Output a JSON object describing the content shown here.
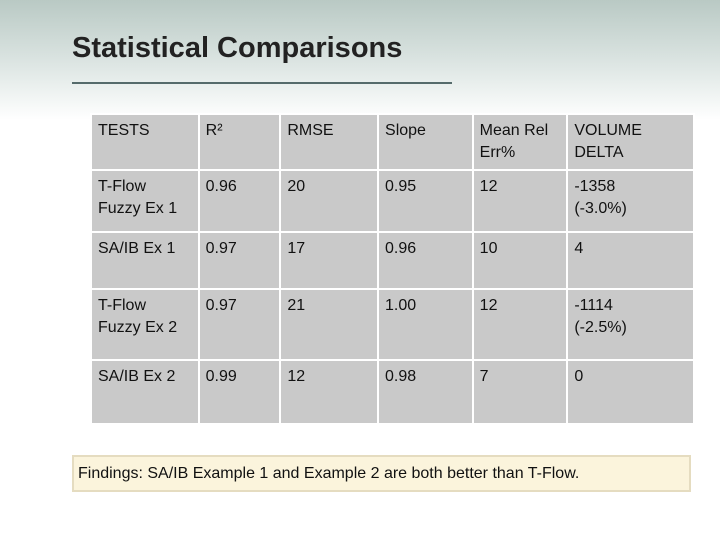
{
  "title": "Statistical Comparisons",
  "table": {
    "header": [
      "TESTS",
      "R²",
      "RMSE",
      "Slope",
      "Mean Rel\nErr%",
      "VOLUME\nDELTA"
    ],
    "rows": [
      [
        "T-Flow\nFuzzy Ex 1",
        "0.96",
        "20",
        "0.95",
        "12",
        "-1358\n(-3.0%)"
      ],
      [
        "SA/IB Ex 1",
        "0.97",
        "17",
        "0.96",
        "10",
        "4"
      ],
      [
        "T-Flow\nFuzzy Ex 2",
        "0.97",
        "21",
        "1.00",
        "12",
        "-1114\n(-2.5%)"
      ],
      [
        "SA/IB Ex 2",
        "0.99",
        "12",
        "0.98",
        "7",
        "0"
      ]
    ]
  },
  "findings": "Findings: SA/IB Example 1 and Example 2 are both better than T-Flow."
}
